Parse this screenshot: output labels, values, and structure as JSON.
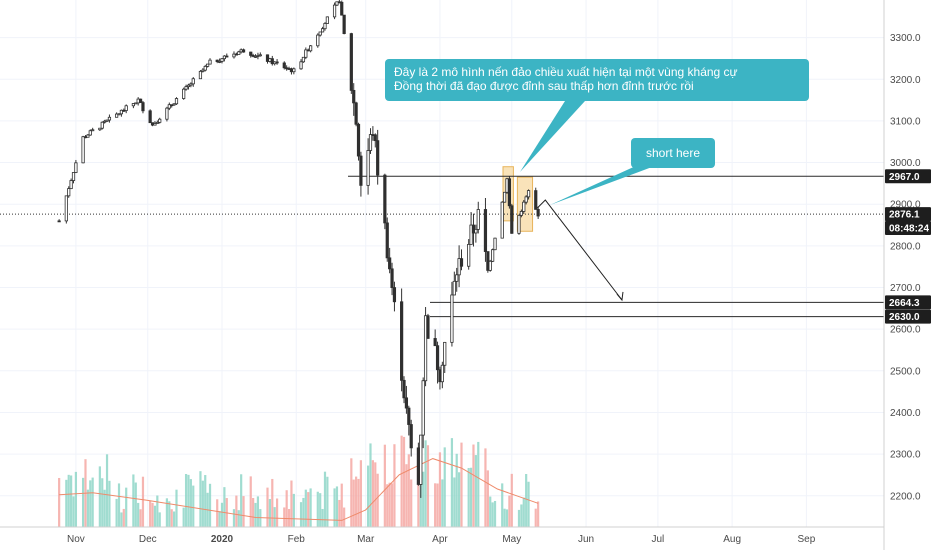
{
  "chart_data": {
    "type": "candlestick",
    "yaxis": {
      "position": "right",
      "ticks": [
        "3300.0",
        "3200.0",
        "3100.0",
        "3000.0",
        "2900.0",
        "2800.0",
        "2700.0",
        "2600.0",
        "2500.0",
        "2400.0",
        "2300.0",
        "2200.0"
      ],
      "ylim": [
        2150,
        3420
      ]
    },
    "xaxis": {
      "ticks": [
        "Nov",
        "Dec",
        "2020",
        "Feb",
        "Mar",
        "Apr",
        "May",
        "Jun",
        "Jul",
        "Aug",
        "Sep"
      ],
      "months": [
        "2019-11",
        "2019-12",
        "2020-01",
        "2020-02",
        "2020-03",
        "2020-04",
        "2020-05",
        "2020-06",
        "2020-07",
        "2020-08",
        "2020-09"
      ]
    },
    "price_labels": [
      {
        "text": "2967.0",
        "value": 2967.0,
        "style": "dark"
      },
      {
        "text": "2876.1",
        "value": 2876.1,
        "style": "dark"
      },
      {
        "text": "08:48:24",
        "value": 2843,
        "style": "dark"
      },
      {
        "text": "2664.3",
        "value": 2664.3,
        "style": "dark"
      },
      {
        "text": "2630.0",
        "value": 2630.0,
        "style": "dark"
      }
    ],
    "horizontal_levels": [
      2967.0,
      2664.3,
      2630.0
    ],
    "current_price": 2876.1,
    "price_path": [
      [
        "2019-10-25",
        2860
      ],
      [
        "2019-11-04",
        3060
      ],
      [
        "2019-11-27",
        3150
      ],
      [
        "2019-12-03",
        3090
      ],
      [
        "2019-12-27",
        3240
      ],
      [
        "2020-01-10",
        3270
      ],
      [
        "2020-01-31",
        3220
      ],
      [
        "2020-02-19",
        3390
      ],
      [
        "2020-02-26",
        3100
      ],
      [
        "2020-02-28",
        2950
      ],
      [
        "2020-03-04",
        3080
      ],
      [
        "2020-03-12",
        2700
      ],
      [
        "2020-03-18",
        2400
      ],
      [
        "2020-03-20",
        2310
      ],
      [
        "2020-03-23",
        2230
      ],
      [
        "2020-03-26",
        2620
      ],
      [
        "2020-04-01",
        2500
      ],
      [
        "2020-04-08",
        2740
      ],
      [
        "2020-04-17",
        2870
      ],
      [
        "2020-04-21",
        2740
      ],
      [
        "2020-04-29",
        2960
      ],
      [
        "2020-05-01",
        2830
      ],
      [
        "2020-05-08",
        2930
      ],
      [
        "2020-05-12",
        2870
      ]
    ],
    "highlight_zones": [
      {
        "start": "2020-04-29",
        "end": "2020-04-30",
        "low": 2860,
        "high": 2990
      },
      {
        "start": "2020-05-05",
        "end": "2020-05-08",
        "low": 2835,
        "high": 2965
      }
    ],
    "projection": [
      [
        "2020-05-15",
        2910
      ],
      [
        "2020-06-16",
        2670
      ]
    ],
    "volume": {
      "ma_path": [
        [
          "2019-10-25",
          0.34
        ],
        [
          "2019-11-08",
          0.36
        ],
        [
          "2019-12-01",
          0.28
        ],
        [
          "2020-01-15",
          0.1
        ],
        [
          "2020-02-20",
          0.07
        ],
        [
          "2020-03-01",
          0.18
        ],
        [
          "2020-03-15",
          0.55
        ],
        [
          "2020-03-29",
          0.72
        ],
        [
          "2020-04-10",
          0.62
        ],
        [
          "2020-04-25",
          0.4
        ],
        [
          "2020-05-12",
          0.25
        ]
      ]
    }
  },
  "annotations": {
    "main_line1": "Đây là 2 mô hình nến đảo chiều xuất hiện tại một vùng kháng cự",
    "main_line2": "Đồng thời đã đạo được đỉnh sau thấp hơn đỉnh trước rồi",
    "short": "short here"
  },
  "colors": {
    "up": "#2f2f2f",
    "down": "#2f2f2f",
    "vol_up": "#8fd6c8",
    "vol_down": "#f4a8a3",
    "vol_ma": "#ef8a6a",
    "callout": "#3cb4c4",
    "highlight": "#f7d9a1",
    "level_line": "#2a2a2a"
  }
}
